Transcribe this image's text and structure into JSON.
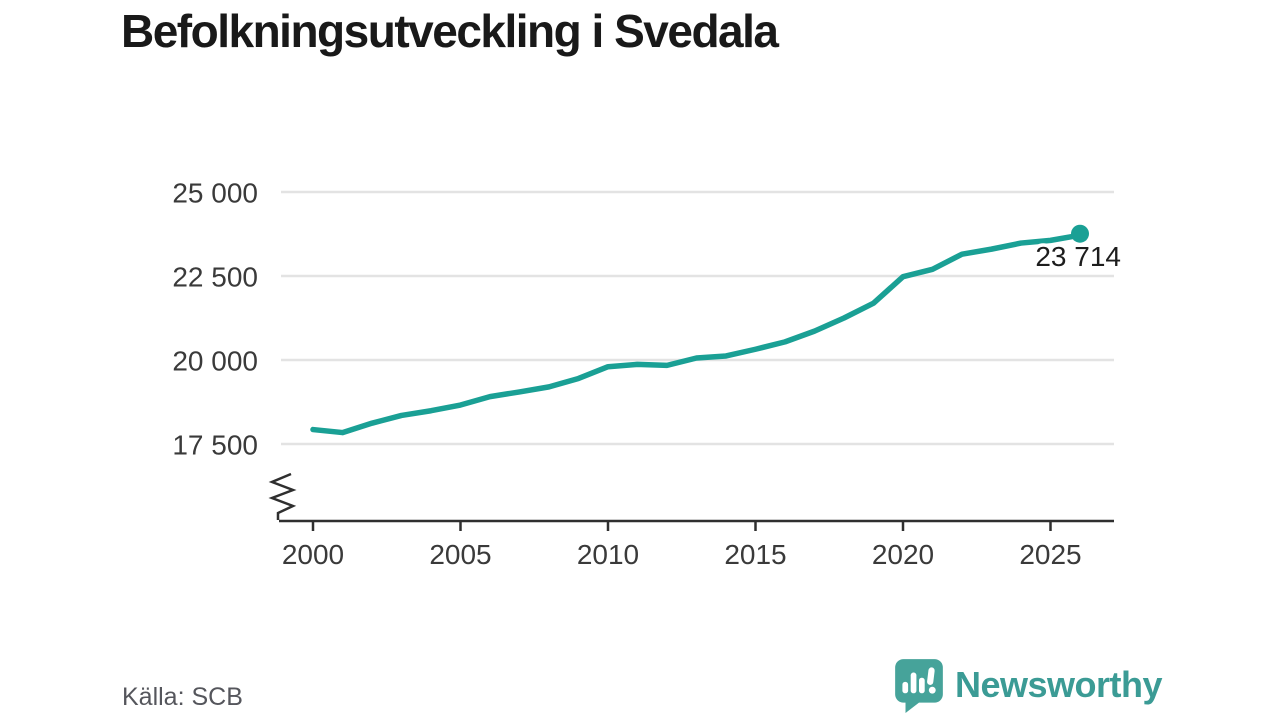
{
  "title": "Befolkningsutveckling i Svedala",
  "source": "Källa: SCB",
  "branding": {
    "name": "Newsworthy",
    "icon": "newsworthy-speech-bubble-chart-icon"
  },
  "colors": {
    "line": "#1aa095",
    "brand_text": "#3b9b95",
    "brand_icon": "#46a39a",
    "grid": "#e3e3e3",
    "axis": "#2f2f2f",
    "tick_text": "#3a3a3a",
    "title_text": "#191919",
    "source_text": "#55565c",
    "annotation_text": "#1d1d1d",
    "background": "#ffffff"
  },
  "chart_data": {
    "type": "line",
    "title": "Befolkningsutveckling i Svedala",
    "xlabel": "",
    "ylabel": "",
    "x": [
      2000,
      2001,
      2002,
      2003,
      2004,
      2005,
      2006,
      2007,
      2008,
      2009,
      2010,
      2011,
      2012,
      2013,
      2014,
      2015,
      2016,
      2017,
      2018,
      2019,
      2020,
      2021,
      2022,
      2023,
      2024,
      2025,
      2026
    ],
    "series": [
      {
        "name": "Befolkning",
        "values": [
          17930,
          17840,
          18120,
          18350,
          18490,
          18660,
          18910,
          19050,
          19200,
          19450,
          19800,
          19870,
          19840,
          20060,
          20120,
          20320,
          20540,
          20860,
          21250,
          21690,
          22480,
          22700,
          23150,
          23300,
          23480,
          23560,
          23714
        ]
      }
    ],
    "end_value": 23714,
    "end_label": "23 714",
    "xticks": [
      2000,
      2005,
      2010,
      2015,
      2020,
      2025
    ],
    "xtick_labels": [
      "2000",
      "2005",
      "2010",
      "2015",
      "2020",
      "2025"
    ],
    "yticks": [
      17500,
      20000,
      22500,
      25000
    ],
    "ytick_labels": [
      "17 500",
      "20 000",
      "22 500",
      "25 000"
    ],
    "ylim": [
      17500,
      25000
    ],
    "axis_break": true,
    "grid": "horizontal",
    "legend": "none"
  }
}
